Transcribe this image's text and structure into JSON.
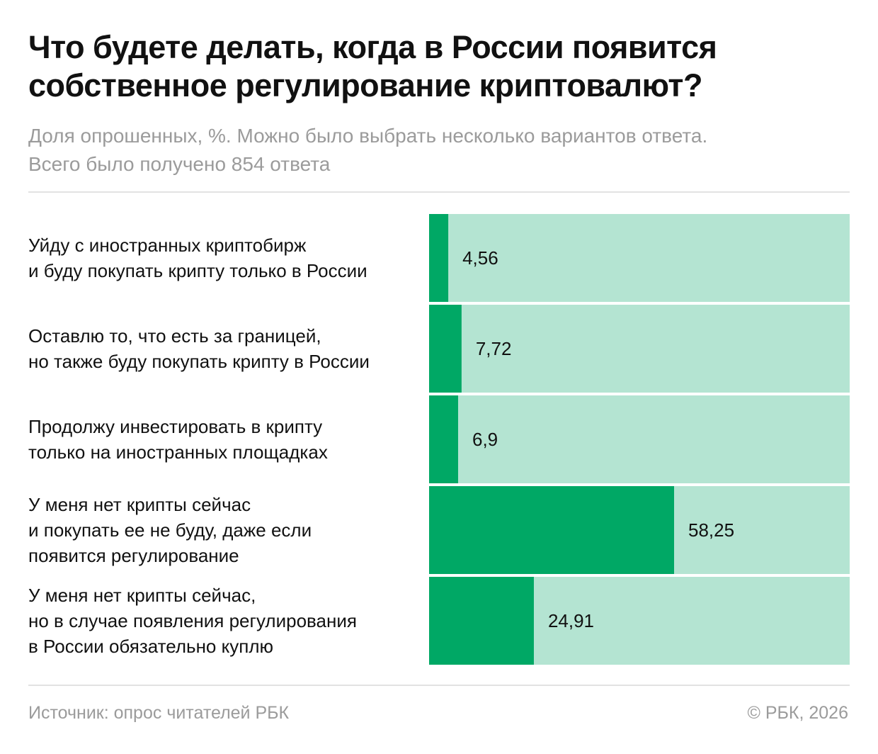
{
  "title_lines": [
    "Что будете делать, когда в России появится",
    "собственное регулирование криптовалют?"
  ],
  "subtitle_lines": [
    "Доля опрошенных, %. Можно было выбрать несколько вариантов ответа.",
    "Всего было получено 854 ответа"
  ],
  "source": "Источник: опрос читателей РБК",
  "copyright": "© РБК, 2026",
  "colors": {
    "bar": "#00a865",
    "track": "#b4e4d2",
    "text": "#111111",
    "muted": "#9b9b9b",
    "rule": "#e2e2e2"
  },
  "chart_data": {
    "type": "bar",
    "orientation": "horizontal",
    "categories": [
      [
        "Уйду с иностранных криптобирж",
        "и буду покупать крипту только в России"
      ],
      [
        "Оставлю то, что есть за границей,",
        "но также буду покупать крипту в России"
      ],
      [
        "Продолжу инвестировать в крипту",
        "только на иностранных площадках"
      ],
      [
        "У меня нет крипты сейчас",
        "и покупать ее не буду, даже если",
        "появится регулирование"
      ],
      [
        "У меня нет крипты сейчас,",
        "но в случае появления регулирования",
        "в России обязательно куплю"
      ]
    ],
    "values": [
      4.56,
      7.72,
      6.9,
      58.25,
      24.91
    ],
    "value_labels": [
      "4,56",
      "7,72",
      "6,9",
      "58,25",
      "24,91"
    ],
    "xlim": [
      0,
      100
    ],
    "grid": false,
    "legend": "none"
  }
}
